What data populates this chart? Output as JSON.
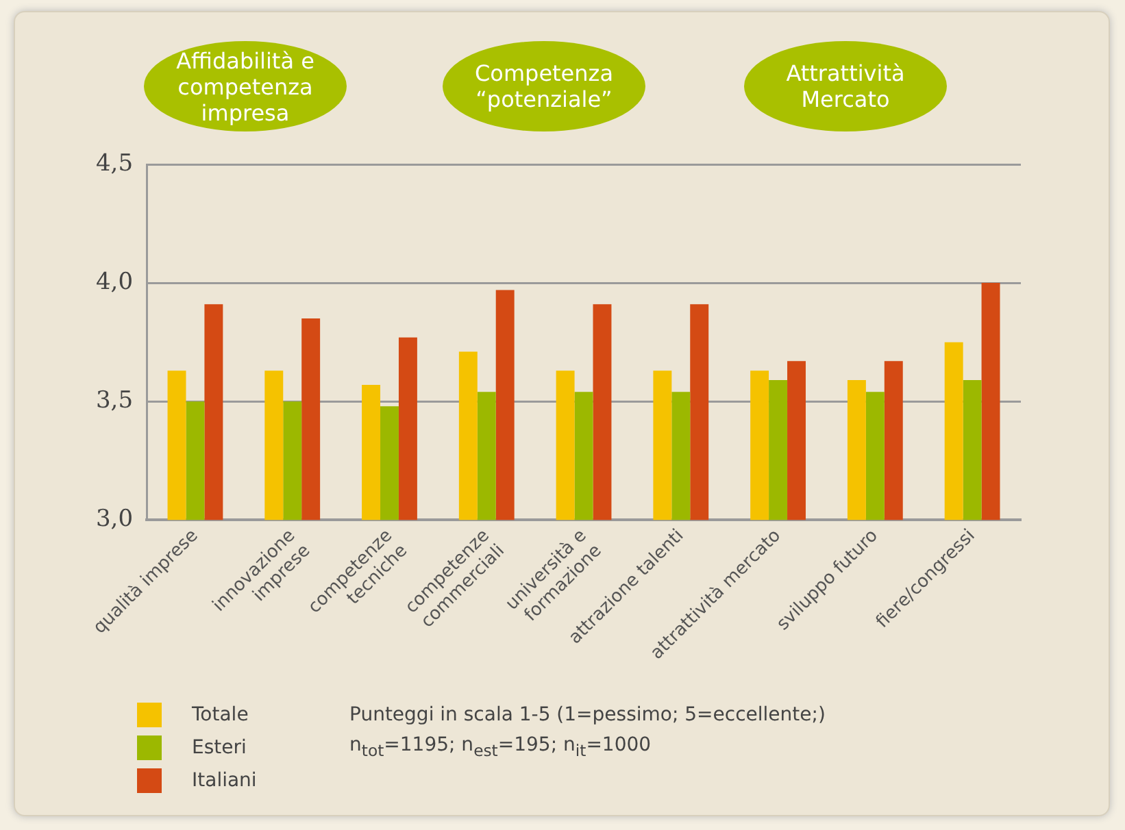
{
  "chart_data": {
    "type": "bar",
    "categories": [
      "qualità imprese",
      "innovazione\nimprese",
      "competenze\ntecniche",
      "competenze\ncommerciali",
      "università e\nformazione",
      "attrazione talenti",
      "attrattività mercato",
      "sviluppo futuro",
      "fiere/congressi"
    ],
    "series": [
      {
        "name": "Totale",
        "color": "#f5c200",
        "values": [
          3.63,
          3.63,
          3.57,
          3.71,
          3.63,
          3.63,
          3.63,
          3.59,
          3.75
        ]
      },
      {
        "name": "Esteri",
        "color": "#9cb800",
        "values": [
          3.5,
          3.5,
          3.48,
          3.54,
          3.54,
          3.54,
          3.59,
          3.54,
          3.59
        ]
      },
      {
        "name": "Italiani",
        "color": "#d44a14",
        "values": [
          3.91,
          3.85,
          3.77,
          3.97,
          3.91,
          3.91,
          3.67,
          3.67,
          4.0
        ]
      }
    ],
    "ylim": [
      3.0,
      4.5
    ],
    "yticks": [
      {
        "value": 3.0,
        "label": "3,0"
      },
      {
        "value": 3.5,
        "label": "3,5"
      },
      {
        "value": 4.0,
        "label": "4,0"
      },
      {
        "value": 4.5,
        "label": "4,5"
      }
    ],
    "grid": "y",
    "legend": "bottom left",
    "annotations": [
      "Affidabilità e\ncompetenza\nimpresa",
      "Competenza\n“potenziale”",
      "Attrattività\nMercato",
      "Punteggi in scala 1-5 (1=pessimo; 5=eccellente;)",
      "n$_{tot}$=1195; n$_{est}$=195; n$_{it}$=1000"
    ]
  }
}
